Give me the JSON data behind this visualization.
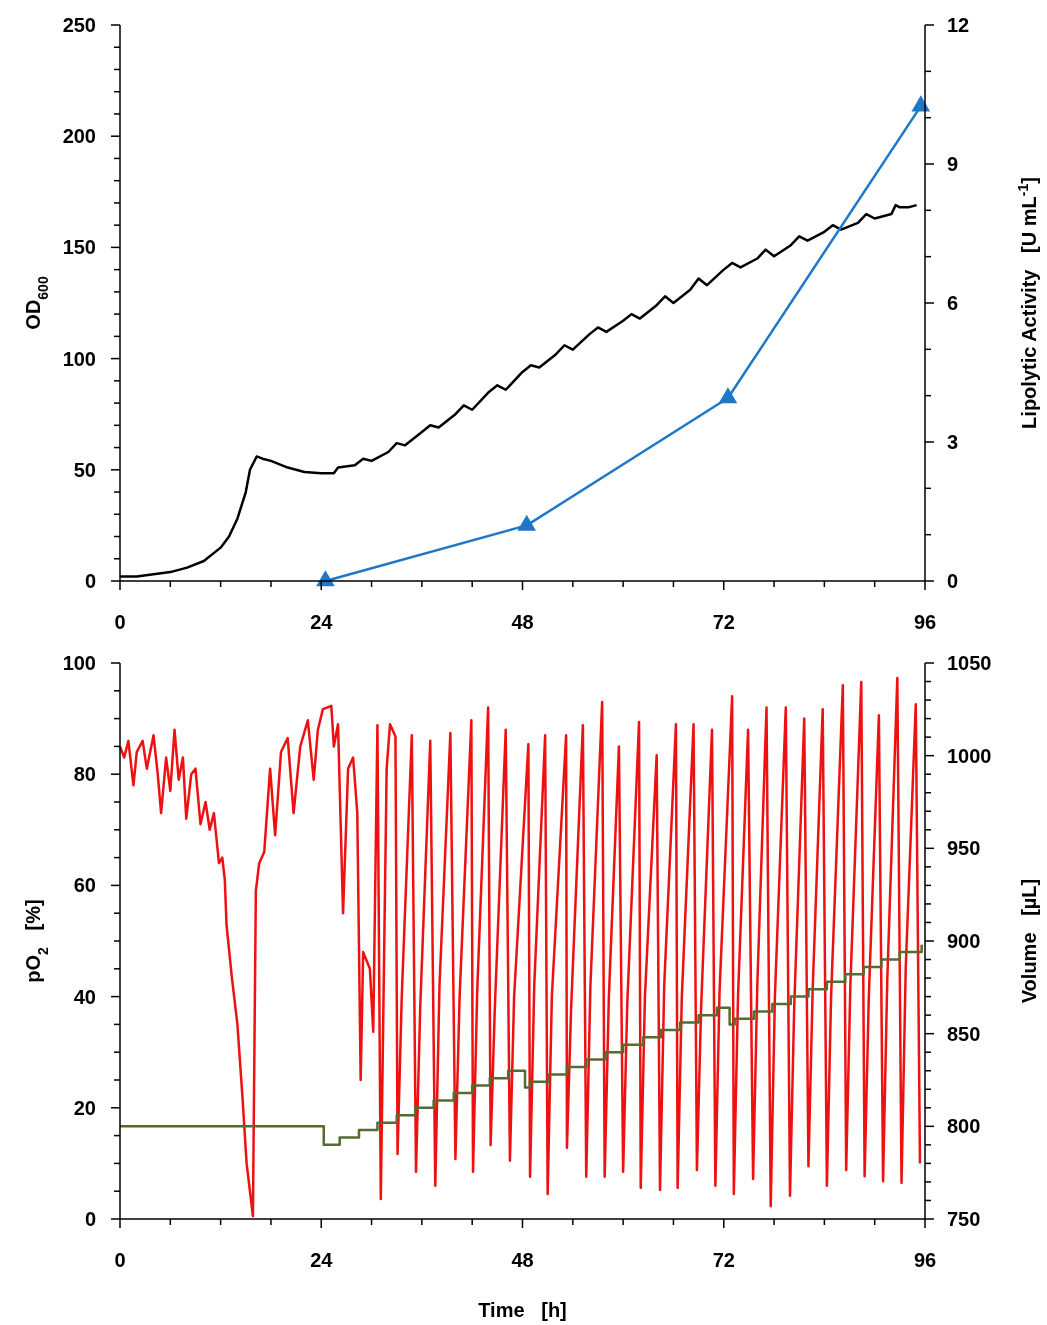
{
  "chart_data": [
    {
      "type": "line",
      "ylabel": "OD$_{600}$",
      "y2label": "Lipolytic Activity   [U mL$^{-1}$]",
      "xlim": [
        0,
        96
      ],
      "xticks": [
        0,
        {
          "value": 6,
          "label": null
        },
        {
          "value": 12,
          "label": null
        },
        {
          "value": 18,
          "label": null
        },
        24,
        {
          "value": 30,
          "label": null
        },
        {
          "value": 36,
          "label": null
        },
        {
          "value": 42,
          "label": null
        },
        48,
        {
          "value": 54,
          "label": null
        },
        {
          "value": 60,
          "label": null
        },
        {
          "value": 66,
          "label": null
        },
        72,
        {
          "value": 78,
          "label": null
        },
        {
          "value": 84,
          "label": null
        },
        {
          "value": 90,
          "label": null
        },
        96
      ],
      "ylim": [
        0,
        250
      ],
      "yticks": [
        0,
        {
          "value": 10,
          "label": null
        },
        {
          "value": 20,
          "label": null
        },
        {
          "value": 30,
          "label": null
        },
        {
          "value": 40,
          "label": null
        },
        50,
        {
          "value": 60,
          "label": null
        },
        {
          "value": 70,
          "label": null
        },
        {
          "value": 80,
          "label": null
        },
        {
          "value": 90,
          "label": null
        },
        100,
        {
          "value": 110,
          "label": null
        },
        {
          "value": 120,
          "label": null
        },
        {
          "value": 130,
          "label": null
        },
        {
          "value": 140,
          "label": null
        },
        150,
        {
          "value": 160,
          "label": null
        },
        {
          "value": 170,
          "label": null
        },
        {
          "value": 180,
          "label": null
        },
        {
          "value": 190,
          "label": null
        },
        200,
        {
          "value": 210,
          "label": null
        },
        {
          "value": 220,
          "label": null
        },
        {
          "value": 230,
          "label": null
        },
        {
          "value": 240,
          "label": null
        },
        250
      ],
      "y2lim": [
        0,
        12
      ],
      "y2ticks": [
        0,
        {
          "value": 1,
          "label": null
        },
        {
          "value": 2,
          "label": null
        },
        3,
        {
          "value": 4,
          "label": null
        },
        {
          "value": 5,
          "label": null
        },
        6,
        {
          "value": 7,
          "label": null
        },
        {
          "value": 8,
          "label": null
        },
        9,
        {
          "value": 10,
          "label": null
        },
        {
          "value": 11,
          "label": null
        },
        12
      ],
      "series": [
        {
          "color": "#000000",
          "marker": "none",
          "x": [
            0,
            2,
            4,
            6,
            8,
            10,
            12,
            13,
            14,
            15,
            15.5,
            16.3,
            17,
            18,
            20,
            22,
            24,
            25.5,
            26,
            28,
            29,
            30,
            32,
            33,
            34,
            36,
            37,
            38,
            40,
            41,
            42,
            44,
            45,
            46,
            48,
            49,
            50,
            52,
            53,
            54,
            56,
            57,
            58,
            60,
            61,
            62,
            64,
            65,
            66,
            68,
            69,
            70,
            72,
            73,
            74,
            76,
            77,
            78,
            80,
            81,
            82,
            84,
            85,
            86,
            88,
            89,
            90,
            92,
            92.5,
            93,
            94,
            95
          ],
          "values": [
            2,
            2,
            3,
            4,
            6,
            9,
            15,
            20,
            28,
            40,
            50,
            56,
            55,
            54,
            51,
            49,
            48.5,
            48.5,
            51,
            52,
            55,
            54,
            58,
            62,
            61,
            67,
            70,
            69,
            75,
            79,
            77,
            85,
            88,
            86,
            94,
            97,
            96,
            102,
            106,
            104,
            111,
            114,
            112,
            117,
            120,
            118,
            124,
            128,
            125,
            131,
            136,
            133,
            140,
            143,
            141,
            145,
            149,
            146,
            151,
            155,
            153,
            157,
            160,
            158,
            161,
            165,
            163,
            165,
            169,
            168,
            168,
            169
          ]
        },
        {
          "color": "#1f77c8",
          "marker": "triangle",
          "axis": "y2",
          "x": [
            24.5,
            48.5,
            72.5,
            95.5
          ],
          "values": [
            0,
            1.2,
            3.95,
            10.25
          ]
        }
      ]
    },
    {
      "type": "line",
      "xlabel": "Time   [h]",
      "ylabel": "pO$_{2}$   [%]",
      "y2label": "Volume   [µL]",
      "xlim": [
        0,
        96
      ],
      "xticks": [
        0,
        {
          "value": 6,
          "label": null
        },
        {
          "value": 12,
          "label": null
        },
        {
          "value": 18,
          "label": null
        },
        24,
        {
          "value": 30,
          "label": null
        },
        {
          "value": 36,
          "label": null
        },
        {
          "value": 42,
          "label": null
        },
        48,
        {
          "value": 54,
          "label": null
        },
        {
          "value": 60,
          "label": null
        },
        {
          "value": 66,
          "label": null
        },
        72,
        {
          "value": 78,
          "label": null
        },
        {
          "value": 84,
          "label": null
        },
        {
          "value": 90,
          "label": null
        },
        96
      ],
      "ylim": [
        0,
        100
      ],
      "yticks": [
        0,
        {
          "value": 5,
          "label": null
        },
        {
          "value": 10,
          "label": null
        },
        {
          "value": 15,
          "label": null
        },
        20,
        {
          "value": 25,
          "label": null
        },
        {
          "value": 30,
          "label": null
        },
        {
          "value": 35,
          "label": null
        },
        40,
        {
          "value": 45,
          "label": null
        },
        {
          "value": 50,
          "label": null
        },
        {
          "value": 55,
          "label": null
        },
        60,
        {
          "value": 65,
          "label": null
        },
        {
          "value": 70,
          "label": null
        },
        {
          "value": 75,
          "label": null
        },
        80,
        {
          "value": 85,
          "label": null
        },
        {
          "value": 90,
          "label": null
        },
        {
          "value": 95,
          "label": null
        },
        100
      ],
      "y2lim": [
        750,
        1050
      ],
      "y2ticks": [
        750,
        {
          "value": 760,
          "label": null
        },
        {
          "value": 770,
          "label": null
        },
        {
          "value": 780,
          "label": null
        },
        {
          "value": 790,
          "label": null
        },
        800,
        {
          "value": 810,
          "label": null
        },
        {
          "value": 820,
          "label": null
        },
        {
          "value": 830,
          "label": null
        },
        {
          "value": 840,
          "label": null
        },
        850,
        {
          "value": 860,
          "label": null
        },
        {
          "value": 870,
          "label": null
        },
        {
          "value": 880,
          "label": null
        },
        {
          "value": 890,
          "label": null
        },
        900,
        {
          "value": 910,
          "label": null
        },
        {
          "value": 920,
          "label": null
        },
        {
          "value": 930,
          "label": null
        },
        {
          "value": 940,
          "label": null
        },
        950,
        {
          "value": 960,
          "label": null
        },
        {
          "value": 970,
          "label": null
        },
        {
          "value": 980,
          "label": null
        },
        {
          "value": 990,
          "label": null
        },
        1000,
        {
          "value": 1010,
          "label": null
        },
        {
          "value": 1020,
          "label": null
        },
        {
          "value": 1030,
          "label": null
        },
        {
          "value": 1040,
          "label": null
        },
        1050
      ],
      "series": [
        {
          "color": "#ee1111",
          "marker": "none",
          "x": [
            0,
            0.5,
            1,
            1.6,
            2,
            2.7,
            3.2,
            4,
            4.5,
            4.9,
            5.5,
            6,
            6.5,
            7,
            7.5,
            7.9,
            8.5,
            9,
            9.6,
            10.2,
            10.7,
            11.2,
            11.6,
            11.8,
            12.2,
            12.5,
            12.7,
            13.3,
            14,
            14.6,
            15.1,
            15.85,
            16.2,
            16.6,
            17.2,
            17.9,
            18.5,
            19.2,
            20,
            20.7,
            21.5,
            22.4,
            23.1,
            23.6,
            24.2,
            25.2,
            25.5,
            26,
            26.6,
            27.2,
            27.8,
            28.3,
            28.7,
            29,
            29.8,
            30.2,
            30.7,
            31.1,
            31.8,
            32.2,
            32.85,
            33.1,
            33.6,
            34.8,
            35.3,
            35.8,
            37,
            37.6,
            38.1,
            39.4,
            40,
            40.5,
            41.9,
            42.1,
            42.6,
            43.9,
            44.2,
            44.7,
            46,
            46.5,
            47,
            48.7,
            48.9,
            49.4,
            50.7,
            51,
            51.5,
            53.2,
            53.3,
            53.8,
            55.2,
            55.6,
            56.1,
            57.5,
            57.8,
            58.3,
            59.5,
            60,
            60.5,
            61.9,
            62.1,
            62.6,
            64,
            64.4,
            64.9,
            66.3,
            66.5,
            67,
            68.4,
            68.8,
            69.3,
            70.6,
            71,
            71.5,
            73,
            73.2,
            73.7,
            74.9,
            75.5,
            76,
            77.1,
            77.6,
            78.1,
            79.4,
            79.9,
            80.4,
            81.6,
            82.1,
            82.6,
            83.8,
            84.3,
            84.8,
            86.2,
            86.6,
            87.1,
            88.4,
            88.8,
            89.3,
            90.5,
            91,
            91.5,
            92.7,
            93.2,
            93.7,
            94.9,
            95.4
          ],
          "values": [
            85,
            83,
            86,
            78,
            84,
            86,
            81,
            87,
            80,
            73,
            83,
            77,
            88,
            79,
            83,
            72,
            80,
            81,
            71,
            75,
            70,
            73,
            67,
            64,
            65,
            61,
            53,
            44,
            35,
            22,
            10,
            0.5,
            59,
            64,
            66,
            81,
            69,
            84,
            86.5,
            73,
            85,
            89.7,
            79,
            88,
            91.7,
            92.3,
            85,
            89,
            55,
            81,
            83,
            73,
            25,
            48,
            45,
            33.7,
            88.8,
            3.6,
            81,
            89,
            86.8,
            11.7,
            40,
            87,
            8.5,
            38,
            86,
            6,
            42,
            87.4,
            10.8,
            40,
            89.7,
            8.5,
            41,
            92,
            13.3,
            38,
            88,
            10.5,
            40,
            85.4,
            7.6,
            42,
            87,
            4.5,
            40,
            87,
            12.8,
            38,
            88.8,
            7.6,
            42,
            93,
            7.6,
            40,
            85,
            8.5,
            39,
            89.4,
            5.6,
            40,
            83.4,
            5.2,
            42,
            89,
            5.6,
            40,
            89,
            8.8,
            38,
            88,
            6,
            41,
            94,
            4.5,
            40,
            88,
            7.2,
            42,
            92,
            2.3,
            40,
            92,
            4.2,
            38,
            90,
            9.5,
            41,
            91.7,
            6,
            40,
            96,
            8.8,
            42,
            96.6,
            7.7,
            40,
            90.6,
            6.8,
            43,
            97.3,
            6.5,
            45,
            92.6,
            10
          ]
        },
        {
          "type": "step",
          "color": "#556b2f",
          "marker": "none",
          "axis": "y2",
          "x": [
            0,
            24.3,
            26.2,
            28.5,
            30.7,
            33,
            35.2,
            37.4,
            39.8,
            42,
            44.1,
            46.3,
            48.3,
            48.9,
            51.1,
            53.3,
            55.6,
            57.9,
            60,
            62.4,
            64.5,
            66.8,
            69,
            71.2,
            72.7,
            73.3,
            75.6,
            77.8,
            80,
            82.1,
            84.3,
            86.5,
            88.7,
            90.8,
            93,
            95.6
          ],
          "values": [
            800,
            790,
            794,
            798,
            802,
            806,
            810,
            814,
            818,
            822,
            826,
            830,
            821,
            824,
            828,
            832,
            836,
            840,
            844,
            848,
            852,
            856,
            860,
            864,
            855,
            858,
            862,
            866,
            870,
            874,
            878,
            882,
            886,
            890,
            894,
            898
          ]
        }
      ]
    }
  ]
}
